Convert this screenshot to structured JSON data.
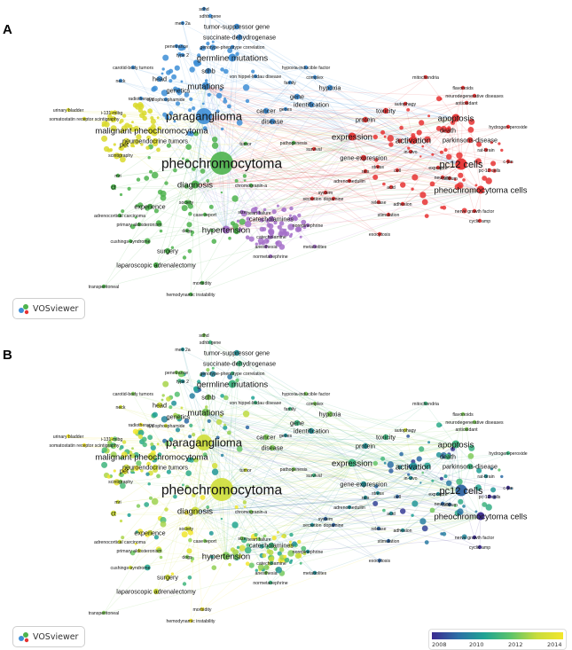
{
  "panels": [
    {
      "letter": "A",
      "mode": "cluster"
    },
    {
      "letter": "B",
      "mode": "overlay"
    }
  ],
  "brand": {
    "label": "VOSviewer",
    "icon": "vosviewer-logo-icon"
  },
  "legend": {
    "ticks": [
      "2008",
      "2010",
      "2012",
      "2014"
    ]
  },
  "colors": {
    "blue": "#3d8ed6",
    "red": "#e63232",
    "green": "#4db34d",
    "yellow": "#d9d92b",
    "purple": "#a470c9",
    "gradient": [
      "#3b2a8f",
      "#2c6fa6",
      "#1fa394",
      "#5cc36b",
      "#c8dc3c",
      "#f3e62b"
    ]
  },
  "nodes": [
    {
      "label": "sdhd",
      "cluster": "blue",
      "year": 2012,
      "w": 1
    },
    {
      "label": "sdhb gene",
      "cluster": "blue",
      "year": 2011,
      "w": 1
    },
    {
      "label": "men 2a",
      "cluster": "blue",
      "year": 2010,
      "w": 1
    },
    {
      "label": "tumor-suppressor gene",
      "cluster": "blue",
      "year": 2010,
      "w": 2
    },
    {
      "label": "succinate-dehydrogenase",
      "cluster": "blue",
      "year": 2011,
      "w": 2
    },
    {
      "label": "penetrance",
      "cluster": "blue",
      "year": 2012,
      "w": 1
    },
    {
      "label": "genotype-phenotype correlation",
      "cluster": "blue",
      "year": 2011,
      "w": 1
    },
    {
      "label": "type 2",
      "cluster": "blue",
      "year": 2010,
      "w": 1
    },
    {
      "label": "germline mutations",
      "cluster": "blue",
      "year": 2011,
      "w": 3
    },
    {
      "label": "carotid-body tumors",
      "cluster": "blue",
      "year": 2012,
      "w": 1
    },
    {
      "label": "sdhb",
      "cluster": "blue",
      "year": 2012,
      "w": 2
    },
    {
      "label": "von hippel-lindau disease",
      "cluster": "blue",
      "year": 2011,
      "w": 1
    },
    {
      "label": "hypoxia-inducible factor",
      "cluster": "blue",
      "year": 2012,
      "w": 1
    },
    {
      "label": "complex",
      "cluster": "blue",
      "year": 2012,
      "w": 1
    },
    {
      "label": "neck",
      "cluster": "blue",
      "year": 2013,
      "w": 1
    },
    {
      "label": "head",
      "cluster": "blue",
      "year": 2013,
      "w": 2
    },
    {
      "label": "mutations",
      "cluster": "blue",
      "year": 2012,
      "w": 3
    },
    {
      "label": "family",
      "cluster": "blue",
      "year": 2011,
      "w": 1
    },
    {
      "label": "hypoxia",
      "cluster": "blue",
      "year": 2012,
      "w": 2
    },
    {
      "label": "radiotherapy",
      "cluster": "blue",
      "year": 2014,
      "w": 1
    },
    {
      "label": "cyclophosphamide",
      "cluster": "blue",
      "year": 2013,
      "w": 1
    },
    {
      "label": "genetics",
      "cluster": "blue",
      "year": 2012,
      "w": 2
    },
    {
      "label": "urinary bladder",
      "cluster": "yellow",
      "year": 2014,
      "w": 1
    },
    {
      "label": "i-131-mibg",
      "cluster": "yellow",
      "year": 2013,
      "w": 1
    },
    {
      "label": "somatostatin receptor scintigraphy",
      "cluster": "yellow",
      "year": 2014,
      "w": 1
    },
    {
      "label": "paraganglioma",
      "cluster": "blue",
      "year": 2013,
      "w": 5
    },
    {
      "label": "gene",
      "cluster": "blue",
      "year": 2011,
      "w": 2
    },
    {
      "label": "cancer",
      "cluster": "blue",
      "year": 2012,
      "w": 2
    },
    {
      "label": "genes",
      "cluster": "blue",
      "year": 2010,
      "w": 1
    },
    {
      "label": "identification",
      "cluster": "blue",
      "year": 2010,
      "w": 2
    },
    {
      "label": "disease",
      "cluster": "blue",
      "year": 2012,
      "w": 2
    },
    {
      "label": "malignant pheochromocytoma",
      "cluster": "yellow",
      "year": 2013,
      "w": 3
    },
    {
      "label": "neuroendocrine tumors",
      "cluster": "yellow",
      "year": 2013,
      "w": 2
    },
    {
      "label": "tumor",
      "cluster": "green",
      "year": 2013,
      "w": 1
    },
    {
      "label": "pet",
      "cluster": "yellow",
      "year": 2014,
      "w": 2
    },
    {
      "label": "scintigraphy",
      "cluster": "yellow",
      "year": 2012,
      "w": 1
    },
    {
      "label": "pheochromocytoma",
      "cluster": "green",
      "year": 2013,
      "w": 6
    },
    {
      "label": "mri",
      "cluster": "green",
      "year": 2013,
      "w": 1
    },
    {
      "label": "ct",
      "cluster": "green",
      "year": 2013,
      "w": 2
    },
    {
      "label": "diagnosis",
      "cluster": "green",
      "year": 2013,
      "w": 3
    },
    {
      "label": "chromogranin-a",
      "cluster": "green",
      "year": 2012,
      "w": 1
    },
    {
      "label": "experience",
      "cluster": "green",
      "year": 2013,
      "w": 2
    },
    {
      "label": "society",
      "cluster": "green",
      "year": 2013,
      "w": 1
    },
    {
      "label": "adrenocortical carcinoma",
      "cluster": "green",
      "year": 2013,
      "w": 1
    },
    {
      "label": "case report",
      "cluster": "green",
      "year": 2012,
      "w": 1
    },
    {
      "label": "size",
      "cluster": "purple",
      "year": 2012,
      "w": 1
    },
    {
      "label": "heart failure",
      "cluster": "purple",
      "year": 2012,
      "w": 1
    },
    {
      "label": "primary aldosteronism",
      "cluster": "green",
      "year": 2013,
      "w": 1
    },
    {
      "label": "catecholamines",
      "cluster": "purple",
      "year": 2011,
      "w": 2
    },
    {
      "label": "norepinephrine",
      "cluster": "purple",
      "year": 2010,
      "w": 1
    },
    {
      "label": "dogs",
      "cluster": "green",
      "year": 2012,
      "w": 1
    },
    {
      "label": "hypertension",
      "cluster": "purple",
      "year": 2012,
      "w": 3
    },
    {
      "label": "catecholamine",
      "cluster": "purple",
      "year": 2011,
      "w": 1
    },
    {
      "label": "cushings-syndrome",
      "cluster": "green",
      "year": 2013,
      "w": 1
    },
    {
      "label": "anesthesia",
      "cluster": "purple",
      "year": 2012,
      "w": 1
    },
    {
      "label": "metabolites",
      "cluster": "purple",
      "year": 2010,
      "w": 1
    },
    {
      "label": "surgery",
      "cluster": "green",
      "year": 2013,
      "w": 2
    },
    {
      "label": "normetanephrine",
      "cluster": "purple",
      "year": 2011,
      "w": 1
    },
    {
      "label": "laparoscopic adrenalectomy",
      "cluster": "green",
      "year": 2013,
      "w": 2
    },
    {
      "label": "transperitoneal",
      "cluster": "green",
      "year": 2012,
      "w": 1
    },
    {
      "label": "morbidity",
      "cluster": "green",
      "year": 2014,
      "w": 1
    },
    {
      "label": "hemodynamic instability",
      "cluster": "green",
      "year": 2014,
      "w": 1
    },
    {
      "label": "pathogenesis",
      "cluster": "green",
      "year": 2012,
      "w": 1
    },
    {
      "label": "expression",
      "cluster": "red",
      "year": 2011,
      "w": 3
    },
    {
      "label": "survival",
      "cluster": "red",
      "year": 2011,
      "w": 1
    },
    {
      "label": "gene-expression",
      "cluster": "red",
      "year": 2010,
      "w": 2
    },
    {
      "label": "adrenomedullin",
      "cluster": "red",
      "year": 2010,
      "w": 1
    },
    {
      "label": "secretion",
      "cluster": "red",
      "year": 2010,
      "w": 1
    },
    {
      "label": "dopamine",
      "cluster": "red",
      "year": 2009,
      "w": 1
    },
    {
      "label": "system",
      "cluster": "red",
      "year": 2009,
      "w": 1
    },
    {
      "label": "mitochondria",
      "cluster": "red",
      "year": 2011,
      "w": 1
    },
    {
      "label": "flavonoids",
      "cluster": "red",
      "year": 2012,
      "w": 1
    },
    {
      "label": "neurodegenerative diseases",
      "cluster": "red",
      "year": 2012,
      "w": 1
    },
    {
      "label": "autophagy",
      "cluster": "red",
      "year": 2013,
      "w": 1
    },
    {
      "label": "antioxidant",
      "cluster": "red",
      "year": 2012,
      "w": 1
    },
    {
      "label": "toxicity",
      "cluster": "red",
      "year": 2011,
      "w": 2
    },
    {
      "label": "protein",
      "cluster": "red",
      "year": 2010,
      "w": 2
    },
    {
      "label": "apoptosis",
      "cluster": "red",
      "year": 2011,
      "w": 3
    },
    {
      "label": "hydrogen-peroxide",
      "cluster": "red",
      "year": 2011,
      "w": 1
    },
    {
      "label": "death",
      "cluster": "red",
      "year": 2011,
      "w": 2
    },
    {
      "label": "activation",
      "cluster": "red",
      "year": 2010,
      "w": 3
    },
    {
      "label": "parkinsons-disease",
      "cluster": "red",
      "year": 2011,
      "w": 2
    },
    {
      "label": "rat-brain",
      "cluster": "red",
      "year": 2010,
      "w": 1
    },
    {
      "label": "in-vivo",
      "cluster": "red",
      "year": 2010,
      "w": 1
    },
    {
      "label": "c-jun",
      "cluster": "red",
      "year": 2008,
      "w": 1
    },
    {
      "label": "pc12 cells",
      "cluster": "red",
      "year": 2009,
      "w": 4
    },
    {
      "label": "stress",
      "cluster": "red",
      "year": 2010,
      "w": 1
    },
    {
      "label": "exposure",
      "cluster": "red",
      "year": 2010,
      "w": 1
    },
    {
      "label": "rats",
      "cluster": "red",
      "year": 2010,
      "w": 1
    },
    {
      "label": "cell",
      "cluster": "red",
      "year": 2009,
      "w": 1
    },
    {
      "label": "calcium",
      "cluster": "red",
      "year": 2009,
      "w": 1
    },
    {
      "label": "pc-12 cells",
      "cluster": "red",
      "year": 2008,
      "w": 1
    },
    {
      "label": "neurons",
      "cluster": "red",
      "year": 2009,
      "w": 1
    },
    {
      "label": "acid",
      "cluster": "red",
      "year": 2010,
      "w": 1
    },
    {
      "label": "pheochromocytoma cells",
      "cluster": "red",
      "year": 2008,
      "w": 3
    },
    {
      "label": "release",
      "cluster": "red",
      "year": 2009,
      "w": 1
    },
    {
      "label": "adhesion",
      "cluster": "red",
      "year": 2010,
      "w": 1
    },
    {
      "label": "nerve growth factor",
      "cluster": "red",
      "year": 2008,
      "w": 1
    },
    {
      "label": "stimulation",
      "cluster": "red",
      "year": 2009,
      "w": 1
    },
    {
      "label": "cyclic amp",
      "cluster": "red",
      "year": 2008,
      "w": 1
    },
    {
      "label": "exocytosis",
      "cluster": "red",
      "year": 2009,
      "w": 1
    }
  ]
}
